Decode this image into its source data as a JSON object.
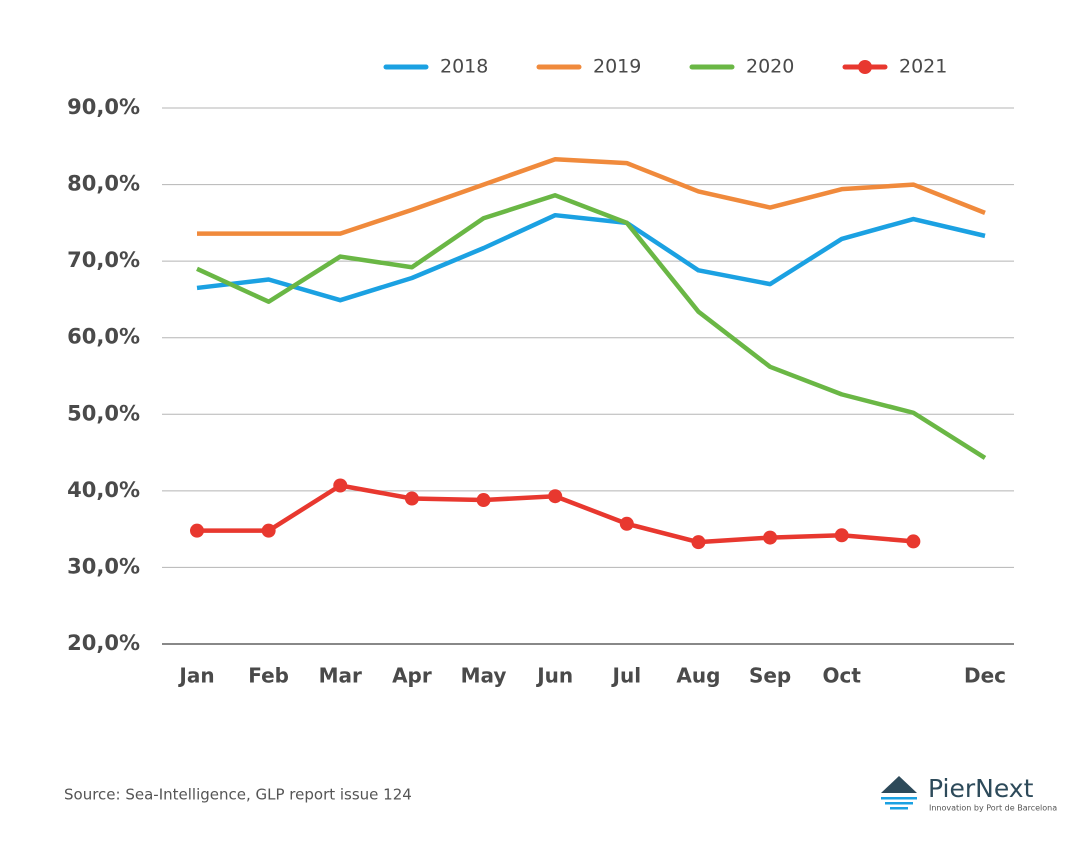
{
  "chart_data": {
    "type": "line",
    "categories": [
      "Jan",
      "Feb",
      "Mar",
      "Apr",
      "May",
      "Jun",
      "Jul",
      "Aug",
      "Sep",
      "Oct",
      null,
      "Dec"
    ],
    "series": [
      {
        "name": "2018",
        "color": "#1ba1e2",
        "values": [
          66.5,
          67.6,
          64.9,
          67.8,
          71.7,
          76.0,
          75.0,
          68.8,
          67.0,
          72.9,
          75.5,
          73.3
        ]
      },
      {
        "name": "2019",
        "color": "#f08a3c",
        "values": [
          73.6,
          73.6,
          73.6,
          76.7,
          80.0,
          83.3,
          82.8,
          79.1,
          77.0,
          79.4,
          80.0,
          76.3
        ]
      },
      {
        "name": "2020",
        "color": "#6ab745",
        "values": [
          69.0,
          64.7,
          70.6,
          69.2,
          75.6,
          78.6,
          75.0,
          63.4,
          56.2,
          52.6,
          50.2,
          44.3
        ]
      },
      {
        "name": "2021",
        "color": "#e8382f",
        "markers": true,
        "values": [
          34.8,
          34.8,
          40.7,
          39.0,
          38.8,
          39.3,
          35.7,
          33.3,
          33.9,
          34.2,
          33.4,
          null
        ]
      }
    ],
    "ylim": [
      20,
      90
    ],
    "yticks": [
      {
        "value": 20,
        "label": "20,0%"
      },
      {
        "value": 30,
        "label": "30,0%"
      },
      {
        "value": 40,
        "label": "40,0%"
      },
      {
        "value": 50,
        "label": "50,0%"
      },
      {
        "value": 60,
        "label": "60,0%"
      },
      {
        "value": 70,
        "label": "70,0%"
      },
      {
        "value": 80,
        "label": "80,0%"
      },
      {
        "value": 90,
        "label": "90,0%"
      }
    ],
    "grid": true,
    "legend": "top"
  },
  "source": "Source: Sea-Intelligence, GLP report issue 124",
  "logo": {
    "name": "PierNext",
    "tagline": "Innovation by Port de Barcelona"
  }
}
